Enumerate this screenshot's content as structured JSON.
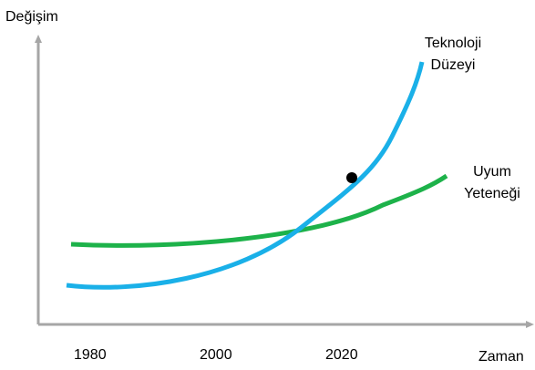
{
  "axes": {
    "y_label": "Değişim",
    "x_label": "Zaman",
    "x_ticks": [
      "1980",
      "2000",
      "2020"
    ]
  },
  "curves": {
    "technology": {
      "label_line1": "Teknoloji",
      "label_line2": "Düzeyi",
      "color": "#1ab0e8"
    },
    "adaptation": {
      "label_line1": "Uyum",
      "label_line2": "Yeteneği",
      "color": "#1db24a"
    }
  },
  "axis_color": "#a6a6a6",
  "marker_color": "#000000"
}
